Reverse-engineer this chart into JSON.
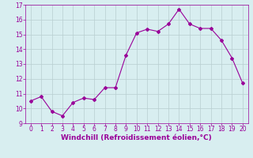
{
  "x": [
    0,
    1,
    2,
    3,
    4,
    5,
    6,
    7,
    8,
    9,
    10,
    11,
    12,
    13,
    14,
    15,
    16,
    17,
    18,
    19,
    20
  ],
  "y": [
    10.5,
    10.8,
    9.8,
    9.5,
    10.4,
    10.7,
    10.6,
    11.4,
    11.4,
    13.6,
    15.1,
    15.35,
    15.2,
    15.7,
    16.7,
    15.7,
    15.4,
    15.4,
    14.6,
    13.4,
    11.7
  ],
  "line_color": "#990099",
  "marker": "D",
  "marker_size": 2,
  "bg_color": "#d8eef0",
  "grid_color": "#b8cdd0",
  "xlabel": "Windchill (Refroidissement éolien,°C)",
  "xlim": [
    -0.5,
    20.5
  ],
  "ylim": [
    9,
    17
  ],
  "yticks": [
    9,
    10,
    11,
    12,
    13,
    14,
    15,
    16,
    17
  ],
  "xticks": [
    0,
    1,
    2,
    3,
    4,
    5,
    6,
    7,
    8,
    9,
    10,
    11,
    12,
    13,
    14,
    15,
    16,
    17,
    18,
    19,
    20
  ],
  "tick_color": "#990099",
  "label_color": "#990099",
  "tick_fontsize": 5.5,
  "xlabel_fontsize": 6.5
}
